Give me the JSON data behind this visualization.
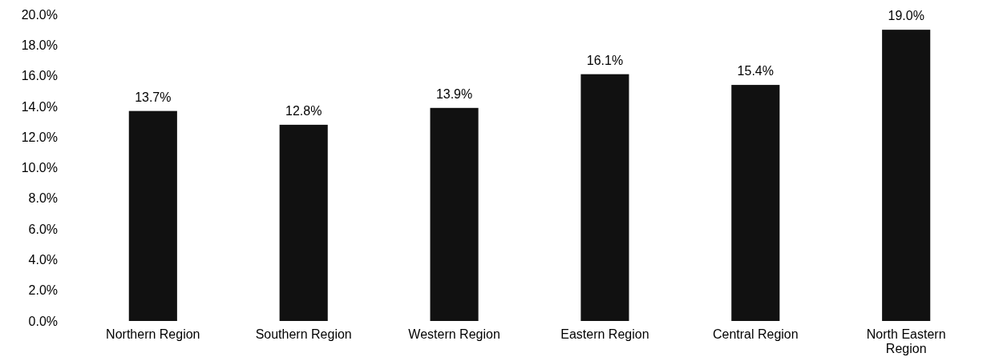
{
  "chart_data": {
    "type": "bar",
    "categories": [
      "Northern Region",
      "Southern Region",
      "Western Region",
      "Eastern Region",
      "Central Region",
      "North Eastern Region"
    ],
    "values": [
      13.7,
      12.8,
      13.9,
      16.1,
      15.4,
      19.0
    ],
    "value_labels": [
      "13.7%",
      "12.8%",
      "13.9%",
      "16.1%",
      "15.4%",
      "19.0%"
    ],
    "color": "#111111",
    "ylim": [
      0,
      20
    ],
    "yticks": [
      {
        "value": 0,
        "label": "0.0%"
      },
      {
        "value": 2,
        "label": "2.0%"
      },
      {
        "value": 4,
        "label": "4.0%"
      },
      {
        "value": 6,
        "label": "6.0%"
      },
      {
        "value": 8,
        "label": "8.0%"
      },
      {
        "value": 10,
        "label": "10.0%"
      },
      {
        "value": 12,
        "label": "12.0%"
      },
      {
        "value": 14,
        "label": "14.0%"
      },
      {
        "value": 16,
        "label": "16.0%"
      },
      {
        "value": 18,
        "label": "18.0%"
      },
      {
        "value": 20,
        "label": "20.0%"
      }
    ],
    "grid": false
  }
}
